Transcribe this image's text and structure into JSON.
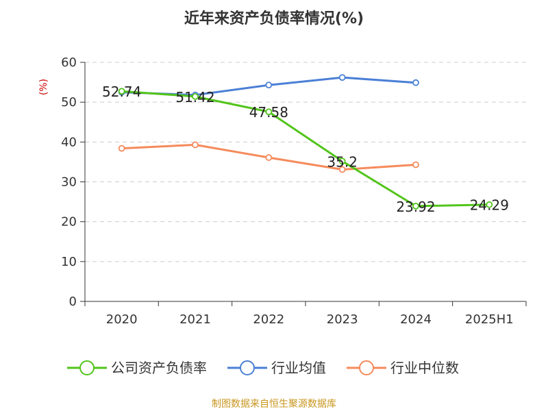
{
  "chart_data": {
    "type": "line",
    "title": "近年来资产负债率情况(%)",
    "ylabel": "(%)",
    "categories": [
      "2020",
      "2021",
      "2022",
      "2023",
      "2024",
      "2025H1"
    ],
    "ylim": [
      0,
      60
    ],
    "yticks": [
      0,
      10,
      20,
      30,
      40,
      50,
      60
    ],
    "grid": true,
    "legend_position": "bottom",
    "series": [
      {
        "name": "公司资产负债率",
        "color": "#52c41a",
        "values": [
          52.74,
          51.42,
          47.58,
          35.2,
          23.92,
          24.29
        ],
        "labels": [
          "52.74",
          "51.42",
          "47.58",
          "35.2",
          "23.92",
          "24.29"
        ]
      },
      {
        "name": "行业均值",
        "color": "#4a7fd6",
        "values": [
          52.5,
          51.8,
          54.3,
          56.2,
          54.9,
          null
        ]
      },
      {
        "name": "行业中位数",
        "color": "#f58a5b",
        "values": [
          38.4,
          39.3,
          36.1,
          33.1,
          34.3,
          null
        ]
      }
    ]
  },
  "footer": {
    "source": "制图数据来自恒生聚源数据库"
  }
}
